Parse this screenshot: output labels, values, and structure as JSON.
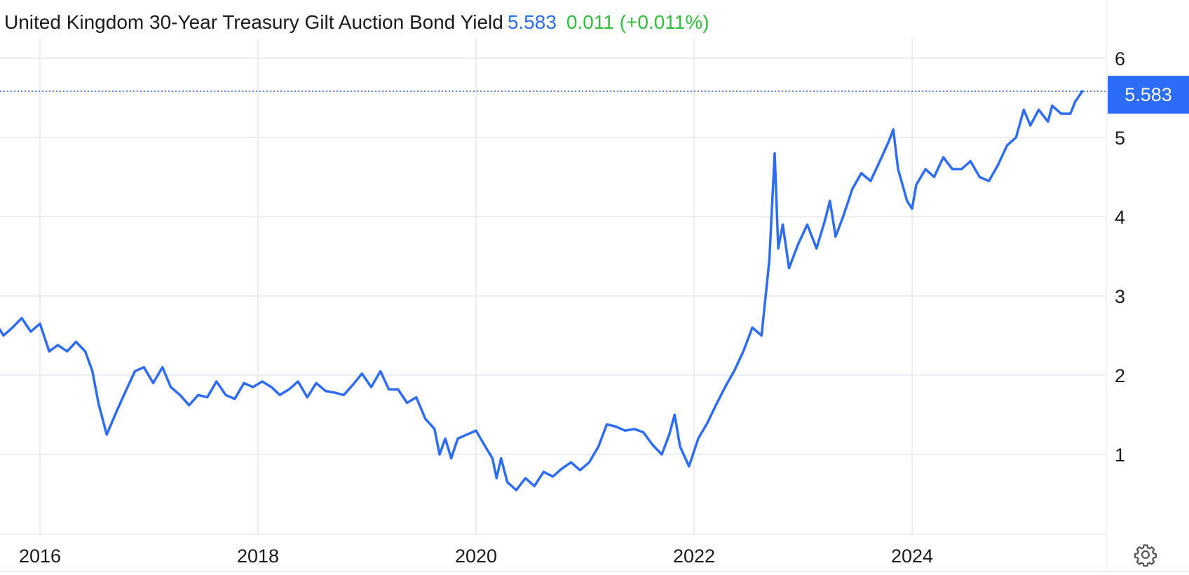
{
  "header": {
    "title": "United Kingdom 30-Year Treasury Gilt Auction Bond Yield",
    "value": "5.583",
    "change": "0.011 (+0.011%)"
  },
  "colors": {
    "line": "#2d6cf6",
    "positive": "#2fbf3a",
    "grid": "#e3e8ee"
  },
  "icons": {
    "settings": "gear-icon"
  },
  "chart_data": {
    "type": "line",
    "title": "United Kingdom 30-Year Treasury Gilt Auction Bond Yield",
    "xlabel": "",
    "ylabel": "",
    "x_tick_labels": [
      "2016",
      "2018",
      "2020",
      "2022",
      "2024"
    ],
    "y_tick_labels": [
      "1",
      "2",
      "3",
      "4",
      "5",
      "6"
    ],
    "ylim": [
      0,
      6.3
    ],
    "xlim": [
      "2015-08-15",
      "2025-08-15"
    ],
    "grid": true,
    "last_value_label": "5.583",
    "series": [
      {
        "values": [
          [
            "2015-08-15",
            2.6
          ],
          [
            "2015-09-01",
            2.5
          ],
          [
            "2015-10-01",
            2.6
          ],
          [
            "2015-11-01",
            2.72
          ],
          [
            "2015-12-01",
            2.55
          ],
          [
            "2016-01-01",
            2.65
          ],
          [
            "2016-02-01",
            2.3
          ],
          [
            "2016-03-01",
            2.38
          ],
          [
            "2016-04-01",
            2.3
          ],
          [
            "2016-05-01",
            2.42
          ],
          [
            "2016-06-01",
            2.3
          ],
          [
            "2016-06-25",
            2.05
          ],
          [
            "2016-07-15",
            1.65
          ],
          [
            "2016-08-12",
            1.25
          ],
          [
            "2016-09-15",
            1.55
          ],
          [
            "2016-10-15",
            1.8
          ],
          [
            "2016-11-15",
            2.05
          ],
          [
            "2016-12-15",
            2.1
          ],
          [
            "2017-01-15",
            1.9
          ],
          [
            "2017-02-15",
            2.1
          ],
          [
            "2017-03-15",
            1.85
          ],
          [
            "2017-04-15",
            1.75
          ],
          [
            "2017-05-15",
            1.62
          ],
          [
            "2017-06-15",
            1.75
          ],
          [
            "2017-07-15",
            1.72
          ],
          [
            "2017-08-15",
            1.92
          ],
          [
            "2017-09-15",
            1.75
          ],
          [
            "2017-10-15",
            1.7
          ],
          [
            "2017-11-15",
            1.9
          ],
          [
            "2017-12-15",
            1.85
          ],
          [
            "2018-01-15",
            1.92
          ],
          [
            "2018-02-15",
            1.85
          ],
          [
            "2018-03-15",
            1.75
          ],
          [
            "2018-04-15",
            1.82
          ],
          [
            "2018-05-15",
            1.92
          ],
          [
            "2018-06-15",
            1.72
          ],
          [
            "2018-07-15",
            1.9
          ],
          [
            "2018-08-15",
            1.8
          ],
          [
            "2018-09-15",
            1.78
          ],
          [
            "2018-10-15",
            1.75
          ],
          [
            "2018-11-15",
            1.88
          ],
          [
            "2018-12-15",
            2.02
          ],
          [
            "2019-01-15",
            1.85
          ],
          [
            "2019-02-15",
            2.05
          ],
          [
            "2019-03-15",
            1.82
          ],
          [
            "2019-04-15",
            1.82
          ],
          [
            "2019-05-15",
            1.65
          ],
          [
            "2019-06-15",
            1.72
          ],
          [
            "2019-07-15",
            1.45
          ],
          [
            "2019-08-15",
            1.32
          ],
          [
            "2019-09-01",
            1.0
          ],
          [
            "2019-09-20",
            1.2
          ],
          [
            "2019-10-10",
            0.95
          ],
          [
            "2019-11-01",
            1.2
          ],
          [
            "2019-12-01",
            1.25
          ],
          [
            "2020-01-01",
            1.3
          ],
          [
            "2020-02-01",
            1.1
          ],
          [
            "2020-02-25",
            0.95
          ],
          [
            "2020-03-10",
            0.7
          ],
          [
            "2020-03-25",
            0.95
          ],
          [
            "2020-04-15",
            0.65
          ],
          [
            "2020-05-15",
            0.55
          ],
          [
            "2020-06-15",
            0.7
          ],
          [
            "2020-07-15",
            0.6
          ],
          [
            "2020-08-15",
            0.78
          ],
          [
            "2020-09-15",
            0.72
          ],
          [
            "2020-10-15",
            0.82
          ],
          [
            "2020-11-15",
            0.9
          ],
          [
            "2020-12-15",
            0.8
          ],
          [
            "2021-01-15",
            0.9
          ],
          [
            "2021-02-15",
            1.1
          ],
          [
            "2021-03-15",
            1.38
          ],
          [
            "2021-04-15",
            1.35
          ],
          [
            "2021-05-15",
            1.3
          ],
          [
            "2021-06-15",
            1.32
          ],
          [
            "2021-07-15",
            1.28
          ],
          [
            "2021-08-15",
            1.12
          ],
          [
            "2021-09-15",
            1.0
          ],
          [
            "2021-10-10",
            1.25
          ],
          [
            "2021-10-28",
            1.5
          ],
          [
            "2021-11-15",
            1.1
          ],
          [
            "2021-12-15",
            0.85
          ],
          [
            "2022-01-15",
            1.2
          ],
          [
            "2022-02-15",
            1.4
          ],
          [
            "2022-03-15",
            1.62
          ],
          [
            "2022-04-15",
            1.85
          ],
          [
            "2022-05-15",
            2.05
          ],
          [
            "2022-06-15",
            2.3
          ],
          [
            "2022-07-15",
            2.6
          ],
          [
            "2022-08-15",
            2.5
          ],
          [
            "2022-09-10",
            3.45
          ],
          [
            "2022-09-28",
            4.8
          ],
          [
            "2022-10-10",
            3.6
          ],
          [
            "2022-10-25",
            3.9
          ],
          [
            "2022-11-15",
            3.35
          ],
          [
            "2022-12-15",
            3.65
          ],
          [
            "2023-01-15",
            3.9
          ],
          [
            "2023-02-15",
            3.6
          ],
          [
            "2023-03-15",
            3.95
          ],
          [
            "2023-04-01",
            4.2
          ],
          [
            "2023-04-20",
            3.75
          ],
          [
            "2023-05-15",
            4.0
          ],
          [
            "2023-06-15",
            4.35
          ],
          [
            "2023-07-15",
            4.55
          ],
          [
            "2023-08-15",
            4.45
          ],
          [
            "2023-09-15",
            4.7
          ],
          [
            "2023-10-15",
            4.95
          ],
          [
            "2023-10-30",
            5.1
          ],
          [
            "2023-11-15",
            4.6
          ],
          [
            "2023-12-15",
            4.2
          ],
          [
            "2024-01-01",
            4.1
          ],
          [
            "2024-01-15",
            4.4
          ],
          [
            "2024-02-15",
            4.6
          ],
          [
            "2024-03-15",
            4.5
          ],
          [
            "2024-04-15",
            4.75
          ],
          [
            "2024-05-15",
            4.6
          ],
          [
            "2024-06-15",
            4.6
          ],
          [
            "2024-07-15",
            4.7
          ],
          [
            "2024-08-15",
            4.5
          ],
          [
            "2024-09-15",
            4.45
          ],
          [
            "2024-10-15",
            4.65
          ],
          [
            "2024-11-15",
            4.9
          ],
          [
            "2024-12-15",
            5.0
          ],
          [
            "2025-01-10",
            5.35
          ],
          [
            "2025-02-01",
            5.15
          ],
          [
            "2025-03-01",
            5.35
          ],
          [
            "2025-04-01",
            5.2
          ],
          [
            "2025-04-15",
            5.4
          ],
          [
            "2025-05-15",
            5.3
          ],
          [
            "2025-06-15",
            5.3
          ],
          [
            "2025-07-01",
            5.45
          ],
          [
            "2025-07-25",
            5.583
          ]
        ]
      }
    ]
  }
}
